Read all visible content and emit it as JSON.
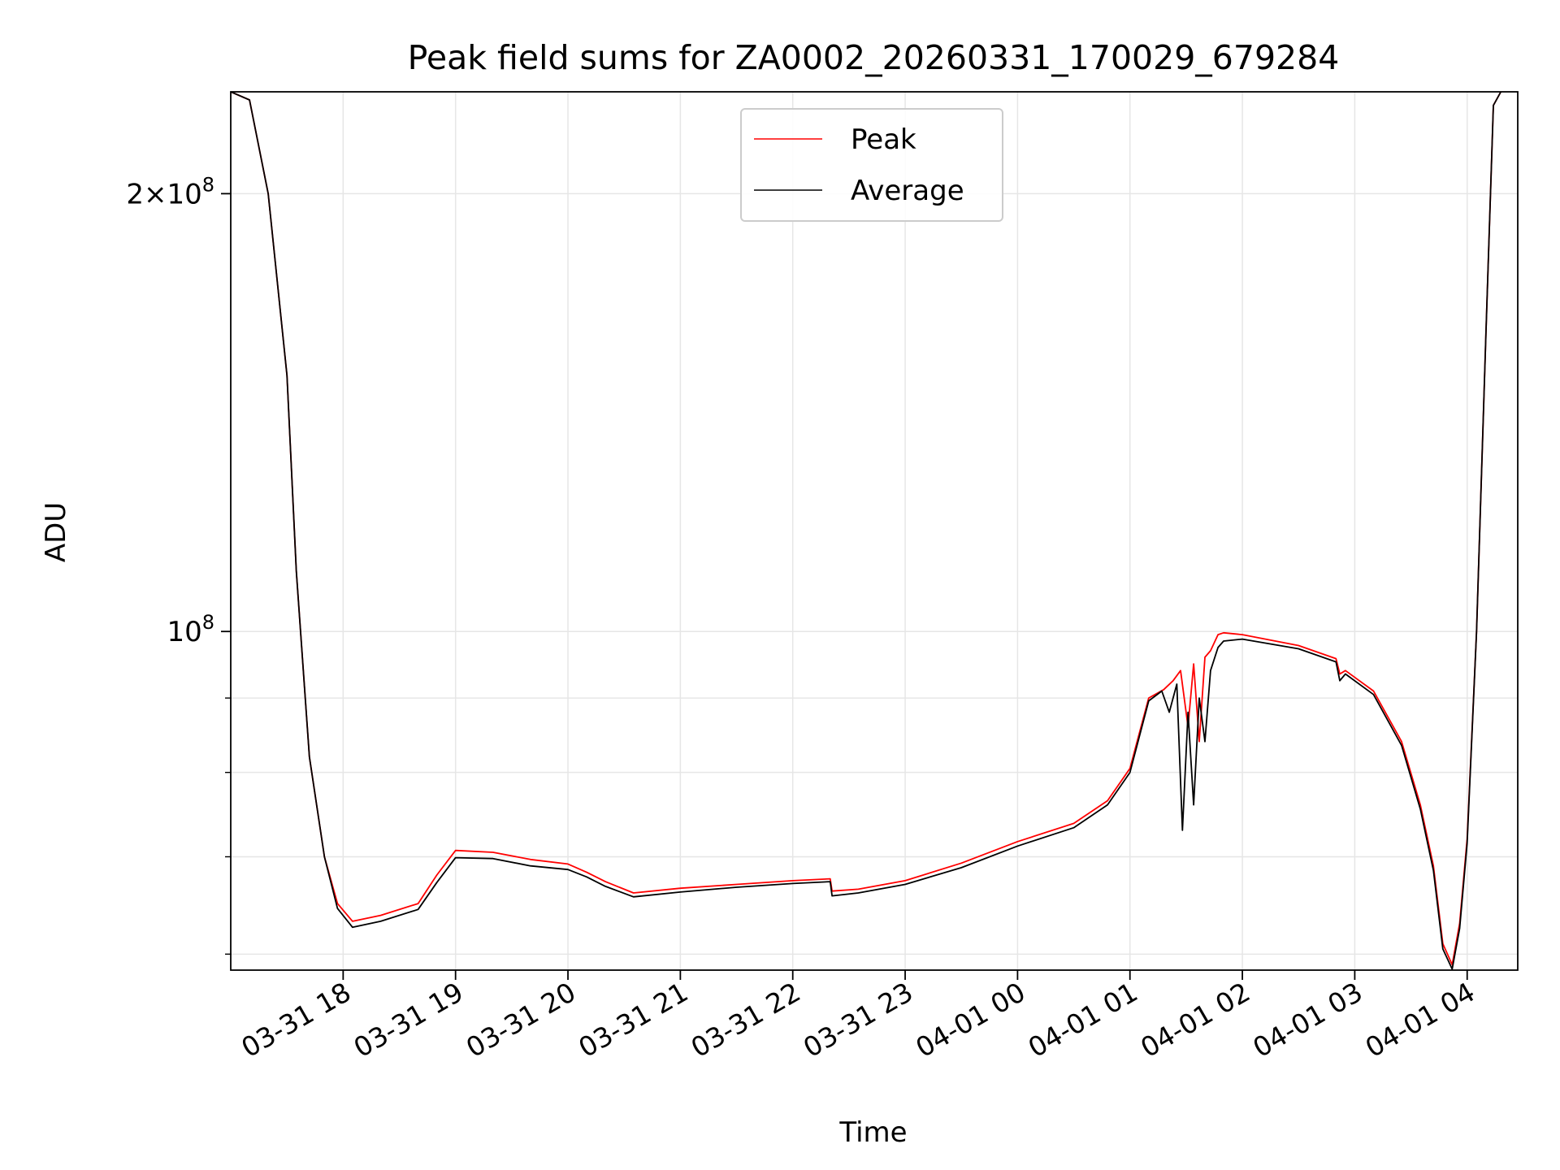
{
  "chart_data": {
    "type": "line",
    "title": "Peak field sums for ZA0002_20260331_170029_679284",
    "xlabel": "Time",
    "ylabel": "ADU",
    "x_range": [
      "2026-03-31 17:00",
      "2026-04-01 04:27"
    ],
    "x_ticks": [
      "03-31 18",
      "03-31 19",
      "03-31 20",
      "03-31 21",
      "03-31 22",
      "03-31 23",
      "04-01 00",
      "04-01 01",
      "04-01 02",
      "04-01 03",
      "04-01 04"
    ],
    "x_tick_dates": [
      "2026-03-31 18:00",
      "2026-03-31 19:00",
      "2026-03-31 20:00",
      "2026-03-31 21:00",
      "2026-03-31 22:00",
      "2026-03-31 23:00",
      "2026-04-01 00:00",
      "2026-04-01 01:00",
      "2026-04-01 02:00",
      "2026-04-01 03:00",
      "2026-04-01 04:00"
    ],
    "y_scale": "log",
    "ylim": [
      58500000,
      235000000
    ],
    "y_major_ticks": [
      {
        "value": 100000000,
        "label": "10^8"
      },
      {
        "value": 200000000,
        "label": "2×10^8"
      }
    ],
    "y_minor_ticks": [
      60000000,
      70000000,
      80000000,
      90000000
    ],
    "grid": true,
    "legend_position": "upper center",
    "colors": {
      "peak": "#ff0000",
      "average": "#000000",
      "grid": "#e6e6e6"
    },
    "series": [
      {
        "name": "Peak",
        "color": "#ff0000",
        "x": [
          "2026-03-31 17:00",
          "2026-03-31 17:10",
          "2026-03-31 17:20",
          "2026-03-31 17:30",
          "2026-03-31 17:35",
          "2026-03-31 17:42",
          "2026-03-31 17:50",
          "2026-03-31 17:57",
          "2026-03-31 18:05",
          "2026-03-31 18:20",
          "2026-03-31 18:40",
          "2026-03-31 18:50",
          "2026-03-31 19:00",
          "2026-03-31 19:20",
          "2026-03-31 19:40",
          "2026-03-31 20:00",
          "2026-03-31 20:10",
          "2026-03-31 20:20",
          "2026-03-31 20:35",
          "2026-03-31 21:00",
          "2026-03-31 21:30",
          "2026-03-31 22:00",
          "2026-03-31 22:20",
          "2026-03-31 22:21",
          "2026-03-31 22:35",
          "2026-03-31 23:00",
          "2026-03-31 23:30",
          "2026-04-01 00:00",
          "2026-04-01 00:30",
          "2026-04-01 00:48",
          "2026-04-01 01:00",
          "2026-04-01 01:10",
          "2026-04-01 01:18",
          "2026-04-01 01:23",
          "2026-04-01 01:27",
          "2026-04-01 01:31",
          "2026-04-01 01:34",
          "2026-04-01 01:37",
          "2026-04-01 01:40",
          "2026-04-01 01:43",
          "2026-04-01 01:47",
          "2026-04-01 01:50",
          "2026-04-01 02:00",
          "2026-04-01 02:30",
          "2026-04-01 02:50",
          "2026-04-01 02:52",
          "2026-04-01 02:55",
          "2026-04-01 03:10",
          "2026-04-01 03:25",
          "2026-04-01 03:35",
          "2026-04-01 03:42",
          "2026-04-01 03:47",
          "2026-04-01 03:52",
          "2026-04-01 03:56",
          "2026-04-01 04:00",
          "2026-04-01 04:05",
          "2026-04-01 04:10",
          "2026-04-01 04:14",
          "2026-04-01 04:18"
        ],
        "y": [
          235000000,
          232000000,
          200000000,
          150000000,
          110000000,
          82000000,
          70000000,
          65000000,
          63200000,
          63800000,
          65000000,
          68000000,
          70700000,
          70500000,
          69700000,
          69200000,
          68300000,
          67300000,
          66100000,
          66600000,
          67000000,
          67400000,
          67600000,
          66300000,
          66500000,
          67400000,
          69300000,
          71700000,
          73800000,
          76500000,
          80500000,
          90000000,
          91200000,
          92500000,
          94000000,
          86000000,
          95000000,
          84000000,
          96000000,
          97000000,
          99500000,
          99800000,
          99500000,
          97800000,
          95800000,
          93500000,
          94000000,
          91000000,
          84000000,
          76000000,
          69000000,
          61000000,
          59000000,
          63000000,
          72000000,
          100000000,
          160000000,
          230000000,
          235000000
        ]
      },
      {
        "name": "Average",
        "color": "#000000",
        "x": [
          "2026-03-31 17:00",
          "2026-03-31 17:10",
          "2026-03-31 17:20",
          "2026-03-31 17:30",
          "2026-03-31 17:35",
          "2026-03-31 17:42",
          "2026-03-31 17:50",
          "2026-03-31 17:57",
          "2026-03-31 18:05",
          "2026-03-31 18:20",
          "2026-03-31 18:40",
          "2026-03-31 18:50",
          "2026-03-31 19:00",
          "2026-03-31 19:20",
          "2026-03-31 19:40",
          "2026-03-31 20:00",
          "2026-03-31 20:10",
          "2026-03-31 20:20",
          "2026-03-31 20:35",
          "2026-03-31 21:00",
          "2026-03-31 21:30",
          "2026-03-31 22:00",
          "2026-03-31 22:20",
          "2026-03-31 22:21",
          "2026-03-31 22:35",
          "2026-03-31 23:00",
          "2026-03-31 23:30",
          "2026-04-01 00:00",
          "2026-04-01 00:30",
          "2026-04-01 00:48",
          "2026-04-01 01:00",
          "2026-04-01 01:10",
          "2026-04-01 01:17",
          "2026-04-01 01:21",
          "2026-04-01 01:25",
          "2026-04-01 01:28",
          "2026-04-01 01:31",
          "2026-04-01 01:34",
          "2026-04-01 01:37",
          "2026-04-01 01:40",
          "2026-04-01 01:43",
          "2026-04-01 01:47",
          "2026-04-01 01:50",
          "2026-04-01 02:00",
          "2026-04-01 02:30",
          "2026-04-01 02:50",
          "2026-04-01 02:52",
          "2026-04-01 02:55",
          "2026-04-01 03:10",
          "2026-04-01 03:25",
          "2026-04-01 03:35",
          "2026-04-01 03:42",
          "2026-04-01 03:47",
          "2026-04-01 03:52",
          "2026-04-01 03:56",
          "2026-04-01 04:00",
          "2026-04-01 04:05",
          "2026-04-01 04:10",
          "2026-04-01 04:14",
          "2026-04-01 04:18"
        ],
        "y": [
          235000000,
          232000000,
          200000000,
          150000000,
          110000000,
          82000000,
          70000000,
          64500000,
          62600000,
          63200000,
          64400000,
          67200000,
          69900000,
          69800000,
          69000000,
          68600000,
          67800000,
          66800000,
          65700000,
          66200000,
          66700000,
          67100000,
          67300000,
          65800000,
          66100000,
          67000000,
          68800000,
          71200000,
          73300000,
          76000000,
          80000000,
          89600000,
          91000000,
          88000000,
          92000000,
          73000000,
          88000000,
          76000000,
          90000000,
          84000000,
          94000000,
          97500000,
          98500000,
          98800000,
          97300000,
          95300000,
          92500000,
          93500000,
          90500000,
          83500000,
          75500000,
          68500000,
          60500000,
          58600000,
          62500000,
          71500000,
          100000000,
          160000000,
          230000000,
          235000000
        ]
      }
    ]
  }
}
